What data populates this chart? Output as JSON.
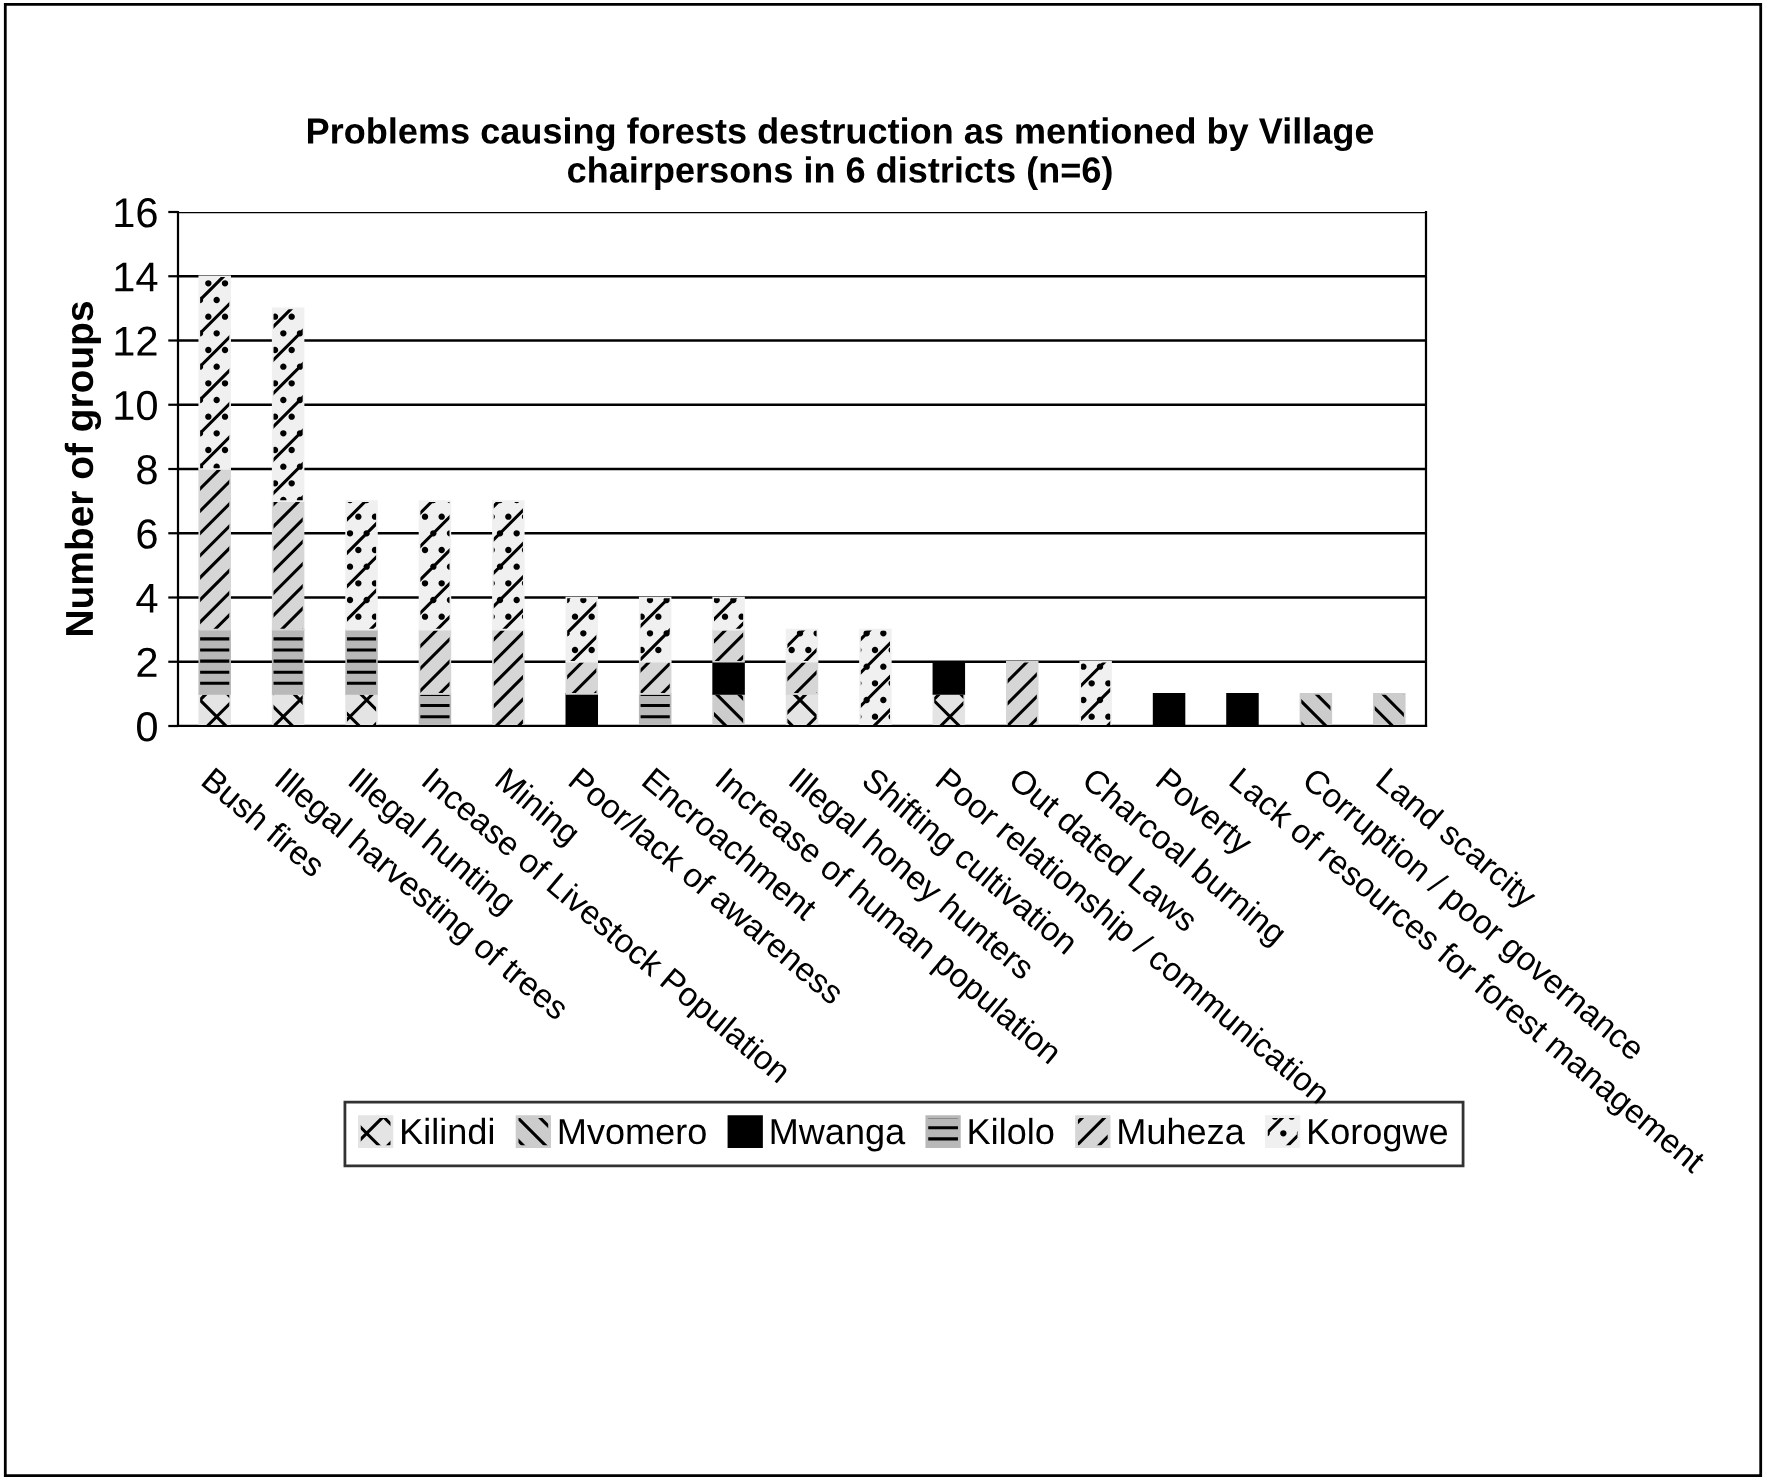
{
  "chart_data": {
    "type": "bar",
    "stacked": true,
    "title": "Problems causing forests destruction as mentioned by Village chairpersons in 6 districts (n=6)",
    "ylabel": "Number of groups",
    "categories": [
      "Bush fires",
      "Illegal harvesting of trees",
      "Illegal hunting",
      "Incease of Livestock Population",
      "Mining",
      "Poor/lack of awareness",
      "Encroachment",
      "Increase of human population",
      "Illegal honey hunters",
      "Shifting cultivation",
      "Poor relationship / communication",
      "Out dated Laws",
      "Charcoal burning",
      "Poverty",
      "Lack of resources for forest management",
      "Corruption / poor governance",
      "Land scarcity"
    ],
    "series": [
      {
        "name": "Kilindi",
        "color": "#e4e4e4",
        "values": [
          1,
          1,
          1,
          0,
          0,
          0,
          0,
          0,
          1,
          0,
          1,
          0,
          0,
          0,
          0,
          0,
          0
        ]
      },
      {
        "name": "Mvomero",
        "color": "#cccccc",
        "values": [
          0,
          0,
          0,
          0,
          0,
          0,
          0,
          1,
          0,
          0,
          0,
          0,
          0,
          0,
          0,
          1,
          1
        ]
      },
      {
        "name": "Mwanga",
        "color": "#000000",
        "values": [
          0,
          0,
          0,
          0,
          0,
          1,
          0,
          1,
          0,
          0,
          1,
          0,
          0,
          1,
          1,
          0,
          0
        ]
      },
      {
        "name": "Kilolo",
        "color": "#b8b8b8",
        "values": [
          2,
          2,
          2,
          1,
          0,
          0,
          1,
          0,
          0,
          0,
          0,
          0,
          0,
          0,
          0,
          0,
          0
        ]
      },
      {
        "name": "Muheza",
        "color": "#d6d6d6",
        "values": [
          5,
          4,
          0,
          2,
          3,
          1,
          1,
          1,
          1,
          0,
          0,
          2,
          0,
          0,
          0,
          0,
          0
        ]
      },
      {
        "name": "Korogwe",
        "color": "#f0f0f0",
        "values": [
          6,
          6,
          4,
          4,
          4,
          2,
          2,
          1,
          1,
          3,
          0,
          0,
          2,
          0,
          0,
          0,
          0
        ]
      }
    ],
    "ylim": [
      0,
      16
    ],
    "yticks": [
      0,
      2,
      4,
      6,
      8,
      10,
      12,
      14,
      16
    ],
    "grid": "y",
    "legend": "bottom"
  }
}
